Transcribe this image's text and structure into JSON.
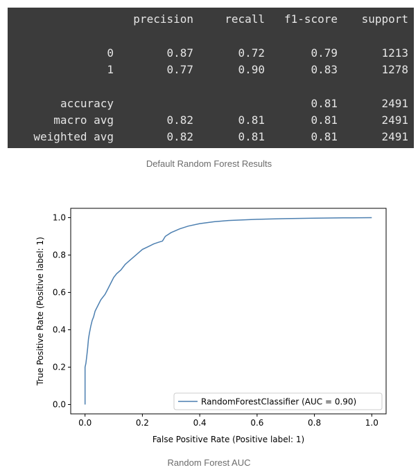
{
  "report": {
    "headers": [
      "precision",
      "recall",
      "f1-score",
      "support"
    ],
    "rows": [
      {
        "label": "0",
        "precision": "0.87",
        "recall": "0.72",
        "f1": "0.79",
        "support": "1213"
      },
      {
        "label": "1",
        "precision": "0.77",
        "recall": "0.90",
        "f1": "0.83",
        "support": "1278"
      },
      {
        "label": "accuracy",
        "precision": "",
        "recall": "",
        "f1": "0.81",
        "support": "2491"
      },
      {
        "label": "macro avg",
        "precision": "0.82",
        "recall": "0.81",
        "f1": "0.81",
        "support": "2491"
      },
      {
        "label": "weighted avg",
        "precision": "0.82",
        "recall": "0.81",
        "f1": "0.81",
        "support": "2491"
      }
    ],
    "caption": "Default Random Forest Results"
  },
  "chart_caption": "Random Forest AUC",
  "chart_data": {
    "type": "line",
    "title": "",
    "xlabel": "False Positive Rate (Positive label: 1)",
    "ylabel": "True Positive Rate (Positive label: 1)",
    "xlim": [
      -0.05,
      1.05
    ],
    "ylim": [
      -0.05,
      1.05
    ],
    "xticks": [
      "0.0",
      "0.2",
      "0.4",
      "0.6",
      "0.8",
      "1.0"
    ],
    "yticks": [
      "0.0",
      "0.2",
      "0.4",
      "0.6",
      "0.8",
      "1.0"
    ],
    "grid": false,
    "legend_position": "lower-right",
    "line_color": "#4c7fb0",
    "series": [
      {
        "name": "RandomForestClassifier (AUC = 0.90)",
        "x": [
          0.0,
          0.0,
          0.003,
          0.006,
          0.009,
          0.012,
          0.015,
          0.02,
          0.025,
          0.03,
          0.035,
          0.045,
          0.055,
          0.07,
          0.08,
          0.09,
          0.1,
          0.11,
          0.125,
          0.14,
          0.155,
          0.17,
          0.185,
          0.2,
          0.22,
          0.24,
          0.26,
          0.27,
          0.28,
          0.3,
          0.33,
          0.36,
          0.4,
          0.45,
          0.5,
          0.55,
          0.6,
          0.7,
          0.8,
          0.9,
          1.0
        ],
        "y": [
          0.0,
          0.2,
          0.22,
          0.26,
          0.3,
          0.35,
          0.38,
          0.42,
          0.45,
          0.47,
          0.5,
          0.53,
          0.56,
          0.59,
          0.62,
          0.65,
          0.68,
          0.7,
          0.72,
          0.75,
          0.77,
          0.79,
          0.81,
          0.83,
          0.845,
          0.86,
          0.87,
          0.875,
          0.9,
          0.92,
          0.94,
          0.955,
          0.968,
          0.978,
          0.985,
          0.988,
          0.991,
          0.995,
          0.997,
          0.999,
          1.0
        ]
      }
    ]
  }
}
